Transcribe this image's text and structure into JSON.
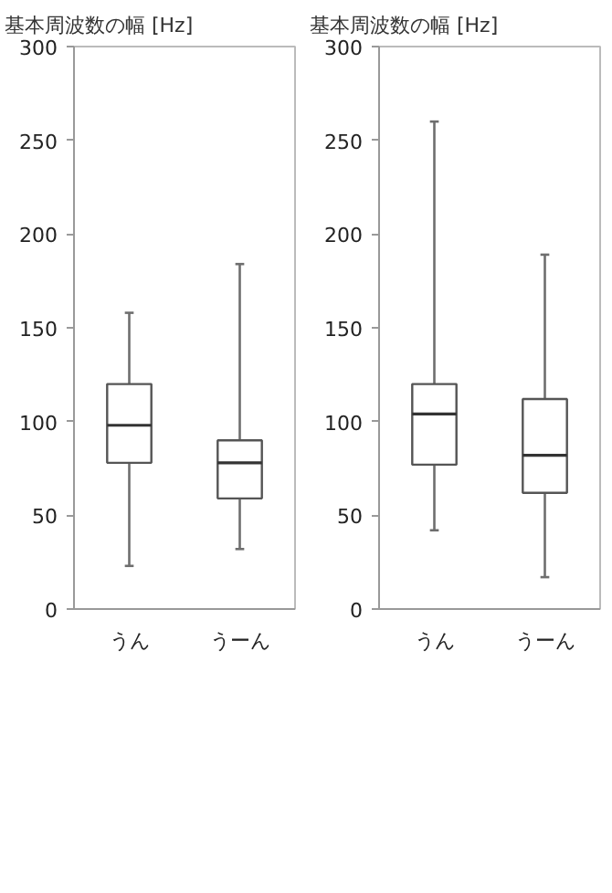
{
  "chart_data": [
    {
      "type": "box",
      "title": "基本周波数の幅 [Hz]",
      "categories": [
        "うん",
        "うーん"
      ],
      "ylim": [
        0,
        300
      ],
      "yticks": [
        0,
        50,
        100,
        150,
        200,
        250,
        300
      ],
      "grid": false,
      "color": "#ffffff",
      "boxes": [
        {
          "low": 23,
          "q1": 78,
          "median": 98,
          "q3": 120,
          "high": 158
        },
        {
          "low": 32,
          "q1": 59,
          "median": 78,
          "q3": 90,
          "high": 184
        }
      ]
    },
    {
      "type": "box",
      "title": "基本周波数の幅 [Hz]",
      "categories": [
        "うん",
        "うーん"
      ],
      "ylim": [
        0,
        300
      ],
      "yticks": [
        0,
        50,
        100,
        150,
        200,
        250,
        300
      ],
      "grid": false,
      "color": "#ffffff",
      "boxes": [
        {
          "low": 42,
          "q1": 77,
          "median": 104,
          "q3": 120,
          "high": 260
        },
        {
          "low": 17,
          "q1": 62,
          "median": 82,
          "q3": 112,
          "high": 189
        }
      ]
    }
  ]
}
